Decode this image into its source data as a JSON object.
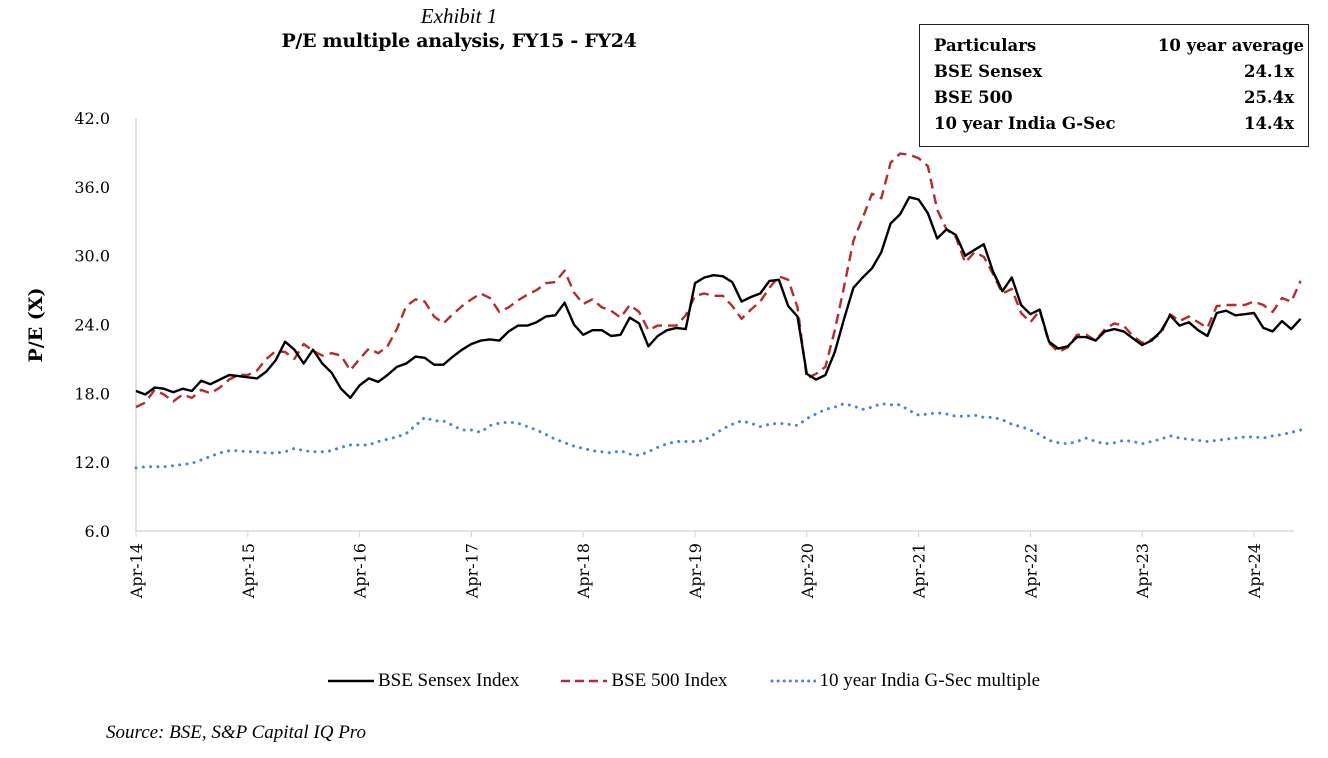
{
  "header": {
    "exhibit": "Exhibit 1",
    "title": "P/E multiple analysis, FY15 - FY24"
  },
  "averages_table": {
    "columns": [
      "Particulars",
      "10 year average"
    ],
    "rows": [
      {
        "label": "BSE Sensex",
        "value": "24.1x"
      },
      {
        "label": "BSE 500",
        "value": "25.4x"
      },
      {
        "label": "10 year India G-Sec",
        "value": "14.4x"
      }
    ]
  },
  "source": "Source: BSE, S&P Capital IQ Pro",
  "chart_data": {
    "type": "line",
    "title": "P/E multiple analysis, FY15 - FY24",
    "xlabel": "",
    "ylabel": "P/E (X)",
    "ylim": [
      6.0,
      42.0
    ],
    "yticks": [
      "6.0",
      "12.0",
      "18.0",
      "24.0",
      "30.0",
      "36.0",
      "42.0"
    ],
    "xticks": [
      "Apr-14",
      "Apr-15",
      "Apr-16",
      "Apr-17",
      "Apr-18",
      "Apr-19",
      "Apr-20",
      "Apr-21",
      "Apr-22",
      "Apr-23",
      "Apr-24"
    ],
    "x_start": "Apr-14",
    "x_frequency": "monthly",
    "grid": false,
    "legend_position": "bottom",
    "series": [
      {
        "name": "BSE Sensex Index",
        "color": "#000000",
        "style": "solid",
        "values": [
          18.2,
          17.9,
          18.5,
          18.4,
          18.1,
          18.4,
          18.2,
          19.1,
          18.8,
          19.2,
          19.6,
          19.5,
          19.4,
          19.3,
          19.9,
          20.9,
          22.5,
          21.8,
          20.6,
          21.8,
          20.6,
          19.8,
          18.4,
          17.6,
          18.7,
          19.3,
          19.0,
          19.6,
          20.3,
          20.6,
          21.2,
          21.1,
          20.5,
          20.5,
          21.2,
          21.8,
          22.3,
          22.6,
          22.7,
          22.6,
          23.4,
          23.9,
          23.9,
          24.2,
          24.7,
          24.8,
          25.9,
          24.0,
          23.1,
          23.5,
          23.5,
          23.0,
          23.1,
          24.6,
          24.1,
          22.1,
          23.0,
          23.5,
          23.7,
          23.6,
          27.6,
          28.1,
          28.3,
          28.2,
          27.7,
          26.0,
          26.4,
          26.7,
          27.8,
          27.9,
          25.6,
          24.7,
          19.7,
          19.2,
          19.6,
          21.6,
          24.5,
          27.2,
          28.1,
          28.9,
          30.3,
          32.8,
          33.6,
          35.1,
          34.9,
          33.7,
          31.5,
          32.3,
          31.8,
          30.0,
          30.5,
          31.0,
          28.6,
          26.9,
          28.1,
          25.7,
          24.9,
          25.3,
          22.5,
          21.9,
          22.1,
          22.9,
          22.9,
          22.6,
          23.4,
          23.6,
          23.4,
          22.8,
          22.2,
          22.6,
          23.4,
          24.8,
          23.9,
          24.2,
          23.5,
          23.0,
          25.0,
          25.2,
          24.8,
          24.9,
          25.0,
          23.7,
          23.4,
          24.3,
          23.6,
          24.5
        ]
      },
      {
        "name": "BSE 500 Index",
        "color": "#B22D2D",
        "style": "dashed",
        "values": [
          16.8,
          17.2,
          18.3,
          17.9,
          17.3,
          17.9,
          17.6,
          18.3,
          18.0,
          18.5,
          19.2,
          19.6,
          19.6,
          20.0,
          21.0,
          21.7,
          21.6,
          21.0,
          22.3,
          21.7,
          21.3,
          21.5,
          21.3,
          20.0,
          21.0,
          21.9,
          21.5,
          22.1,
          23.6,
          25.6,
          26.2,
          26.0,
          24.7,
          24.1,
          24.9,
          25.6,
          26.2,
          26.7,
          26.3,
          25.1,
          25.5,
          26.1,
          26.6,
          27.0,
          27.6,
          27.7,
          28.7,
          26.8,
          25.8,
          26.2,
          25.5,
          25.2,
          24.6,
          25.7,
          25.1,
          23.5,
          23.9,
          23.9,
          23.9,
          24.8,
          26.5,
          26.7,
          26.5,
          26.5,
          25.6,
          24.5,
          25.3,
          26.0,
          27.2,
          28.2,
          27.9,
          25.5,
          19.3,
          19.7,
          20.3,
          23.5,
          27.3,
          31.3,
          33.3,
          35.4,
          35.0,
          38.1,
          38.9,
          38.8,
          38.5,
          37.8,
          34.0,
          32.3,
          31.6,
          29.4,
          30.3,
          29.9,
          28.4,
          26.7,
          27.1,
          25.0,
          24.2,
          25.2,
          22.4,
          21.6,
          22.0,
          23.1,
          23.1,
          22.6,
          23.6,
          24.1,
          23.9,
          23.0,
          22.4,
          22.7,
          23.2,
          24.9,
          24.3,
          24.7,
          24.2,
          23.7,
          25.6,
          25.7,
          25.7,
          25.7,
          26.0,
          25.7,
          25.1,
          26.3,
          26.0,
          27.8
        ]
      },
      {
        "name": "10 year India G-Sec multiple",
        "color": "#4A86D8",
        "style": "dotted",
        "values": [
          11.5,
          11.6,
          11.6,
          11.6,
          11.7,
          11.8,
          11.9,
          12.2,
          12.5,
          12.8,
          13.0,
          13.0,
          12.9,
          12.9,
          12.8,
          12.8,
          12.9,
          13.2,
          13.0,
          12.9,
          12.9,
          13.0,
          13.3,
          13.5,
          13.5,
          13.5,
          13.8,
          14.0,
          14.2,
          14.5,
          15.2,
          15.9,
          15.6,
          15.6,
          15.2,
          14.8,
          14.8,
          14.6,
          15.2,
          15.4,
          15.5,
          15.4,
          15.1,
          14.8,
          14.4,
          14.0,
          13.7,
          13.4,
          13.2,
          13.0,
          12.9,
          12.8,
          13.0,
          12.7,
          12.6,
          12.9,
          13.3,
          13.6,
          13.8,
          13.8,
          13.8,
          13.9,
          14.4,
          14.9,
          15.3,
          15.6,
          15.4,
          15.1,
          15.3,
          15.4,
          15.3,
          15.2,
          15.8,
          16.2,
          16.6,
          16.8,
          17.1,
          16.9,
          16.6,
          16.8,
          17.1,
          17.0,
          17.0,
          16.5,
          16.1,
          16.2,
          16.3,
          16.2,
          16.0,
          16.0,
          16.1,
          15.9,
          15.9,
          15.7,
          15.3,
          15.1,
          14.8,
          14.4,
          13.9,
          13.7,
          13.6,
          13.8,
          14.1,
          13.8,
          13.6,
          13.7,
          13.9,
          13.8,
          13.6,
          13.8,
          14.0,
          14.3,
          14.1,
          14.0,
          13.9,
          13.8,
          13.9,
          14.0,
          14.1,
          14.2,
          14.2,
          14.1,
          14.3,
          14.4,
          14.6,
          14.8
        ]
      }
    ]
  }
}
